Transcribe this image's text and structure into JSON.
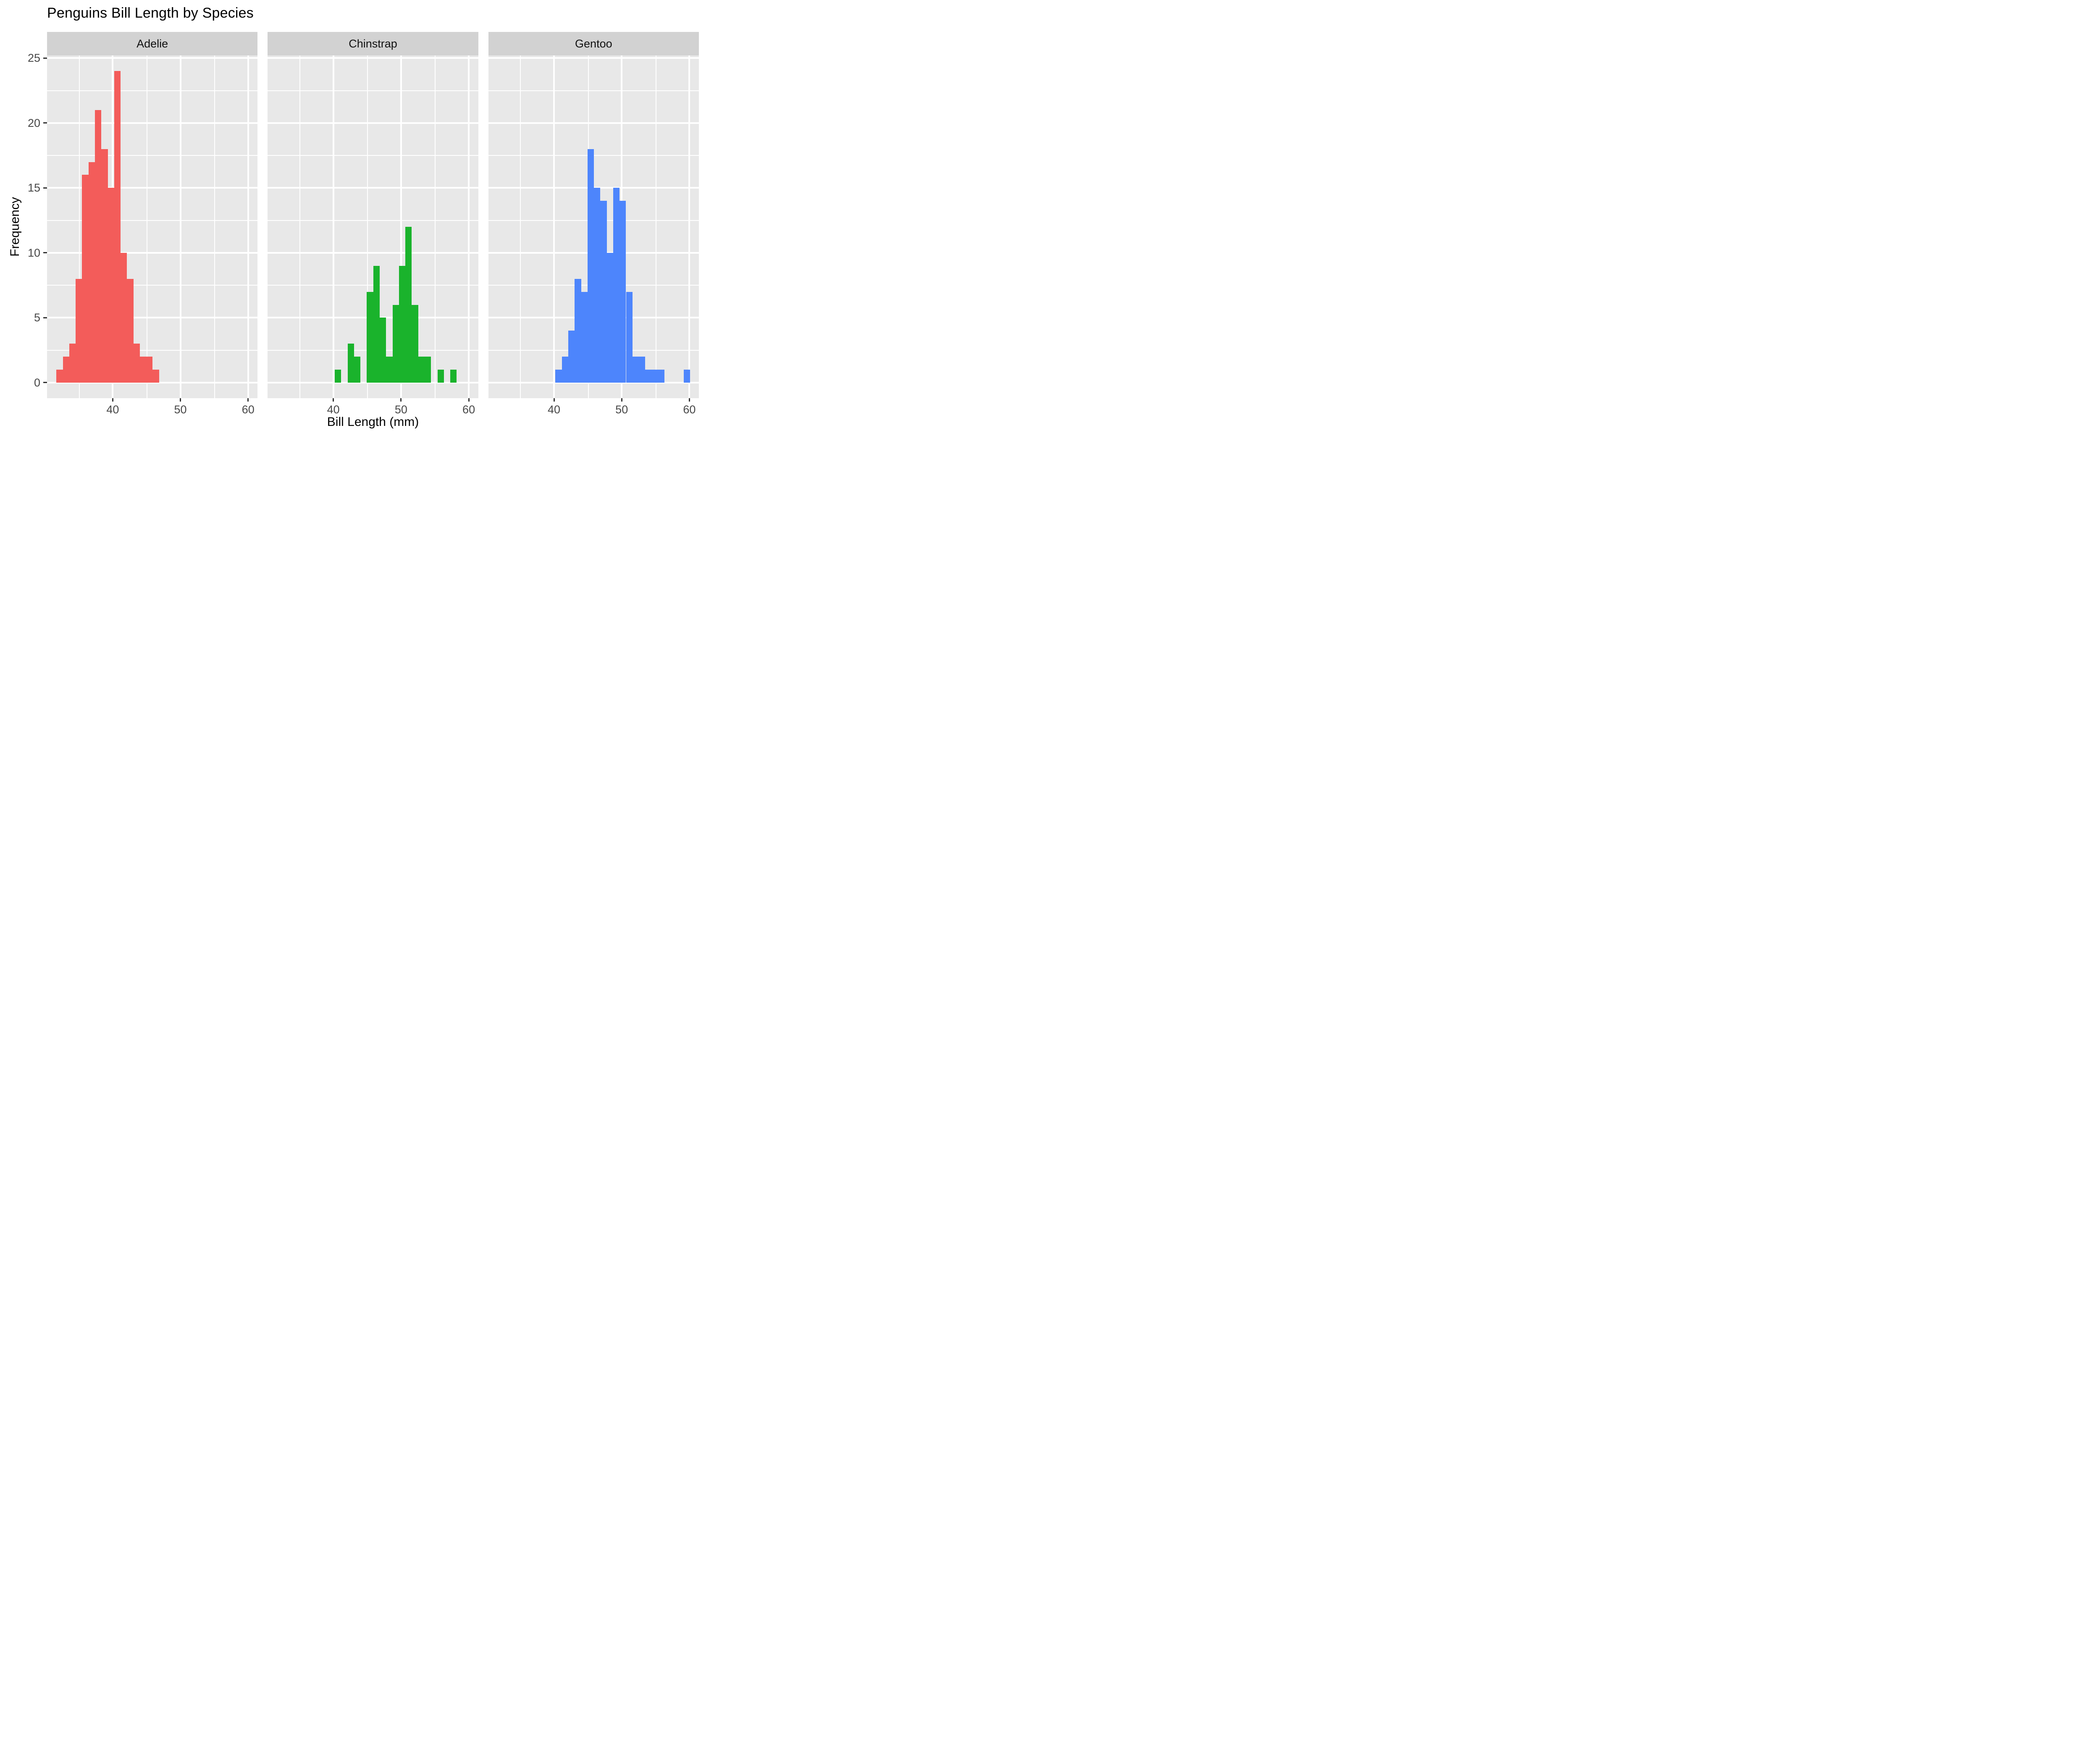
{
  "title": "Penguins Bill Length by Species",
  "chart_data": {
    "type": "bar",
    "subtype": "faceted-histogram",
    "title": "Penguins Bill Length by Species",
    "xlabel": "Bill Length (mm)",
    "ylabel": "Frequency",
    "x_domain": [
      30.3,
      61.4
    ],
    "y_domain": [
      -1.2,
      25.2
    ],
    "x_major_ticks": [
      40,
      50,
      60
    ],
    "x_minor_gridlines": [
      35,
      45,
      55
    ],
    "y_major_ticks": [
      0,
      5,
      10,
      15,
      20,
      25
    ],
    "y_minor_gridlines": [
      2.5,
      7.5,
      12.5,
      17.5,
      22.5
    ],
    "grid": "on",
    "legend": "none",
    "bin_width": 0.948,
    "facets": [
      {
        "label": "Adelie",
        "fill": "#F35C5A",
        "bars": [
          {
            "x0": 31.68,
            "count": 1
          },
          {
            "x0": 32.63,
            "count": 2
          },
          {
            "x0": 33.58,
            "count": 3
          },
          {
            "x0": 34.52,
            "count": 8
          },
          {
            "x0": 35.47,
            "count": 16
          },
          {
            "x0": 36.42,
            "count": 17
          },
          {
            "x0": 37.37,
            "count": 21
          },
          {
            "x0": 38.32,
            "count": 18
          },
          {
            "x0": 39.26,
            "count": 15
          },
          {
            "x0": 40.21,
            "count": 24
          },
          {
            "x0": 41.16,
            "count": 10
          },
          {
            "x0": 42.11,
            "count": 8
          },
          {
            "x0": 43.06,
            "count": 3
          },
          {
            "x0": 44.0,
            "count": 2
          },
          {
            "x0": 44.95,
            "count": 2
          },
          {
            "x0": 45.9,
            "count": 1
          }
        ]
      },
      {
        "label": "Chinstrap",
        "fill": "#1AB32C",
        "bars": [
          {
            "x0": 40.21,
            "count": 1
          },
          {
            "x0": 42.11,
            "count": 3
          },
          {
            "x0": 43.06,
            "count": 2
          },
          {
            "x0": 44.95,
            "count": 7
          },
          {
            "x0": 45.9,
            "count": 9
          },
          {
            "x0": 46.85,
            "count": 5
          },
          {
            "x0": 47.79,
            "count": 2
          },
          {
            "x0": 48.74,
            "count": 6
          },
          {
            "x0": 49.69,
            "count": 9
          },
          {
            "x0": 50.64,
            "count": 12
          },
          {
            "x0": 51.58,
            "count": 6
          },
          {
            "x0": 52.53,
            "count": 2
          },
          {
            "x0": 53.48,
            "count": 2
          },
          {
            "x0": 55.38,
            "count": 1
          },
          {
            "x0": 57.27,
            "count": 1
          }
        ]
      },
      {
        "label": "Gentoo",
        "fill": "#4D85FC",
        "bars": [
          {
            "x0": 40.21,
            "count": 1
          },
          {
            "x0": 41.16,
            "count": 2
          },
          {
            "x0": 42.11,
            "count": 4
          },
          {
            "x0": 43.06,
            "count": 8
          },
          {
            "x0": 44.0,
            "count": 7
          },
          {
            "x0": 44.95,
            "count": 18
          },
          {
            "x0": 45.9,
            "count": 15
          },
          {
            "x0": 46.85,
            "count": 14
          },
          {
            "x0": 47.79,
            "count": 10
          },
          {
            "x0": 48.74,
            "count": 15
          },
          {
            "x0": 49.69,
            "count": 14
          },
          {
            "x0": 50.64,
            "count": 7
          },
          {
            "x0": 51.58,
            "count": 2
          },
          {
            "x0": 52.53,
            "count": 2
          },
          {
            "x0": 53.48,
            "count": 1
          },
          {
            "x0": 54.43,
            "count": 1
          },
          {
            "x0": 55.38,
            "count": 1
          },
          {
            "x0": 59.17,
            "count": 1
          }
        ]
      }
    ]
  },
  "style": {
    "panel_bg": "#E8E8E8",
    "strip_bg": "#D2D2D2",
    "gridline": "#FFFFFF",
    "axis_text": "#474747",
    "tick_mark": "#333333",
    "title_text": "#000000"
  }
}
